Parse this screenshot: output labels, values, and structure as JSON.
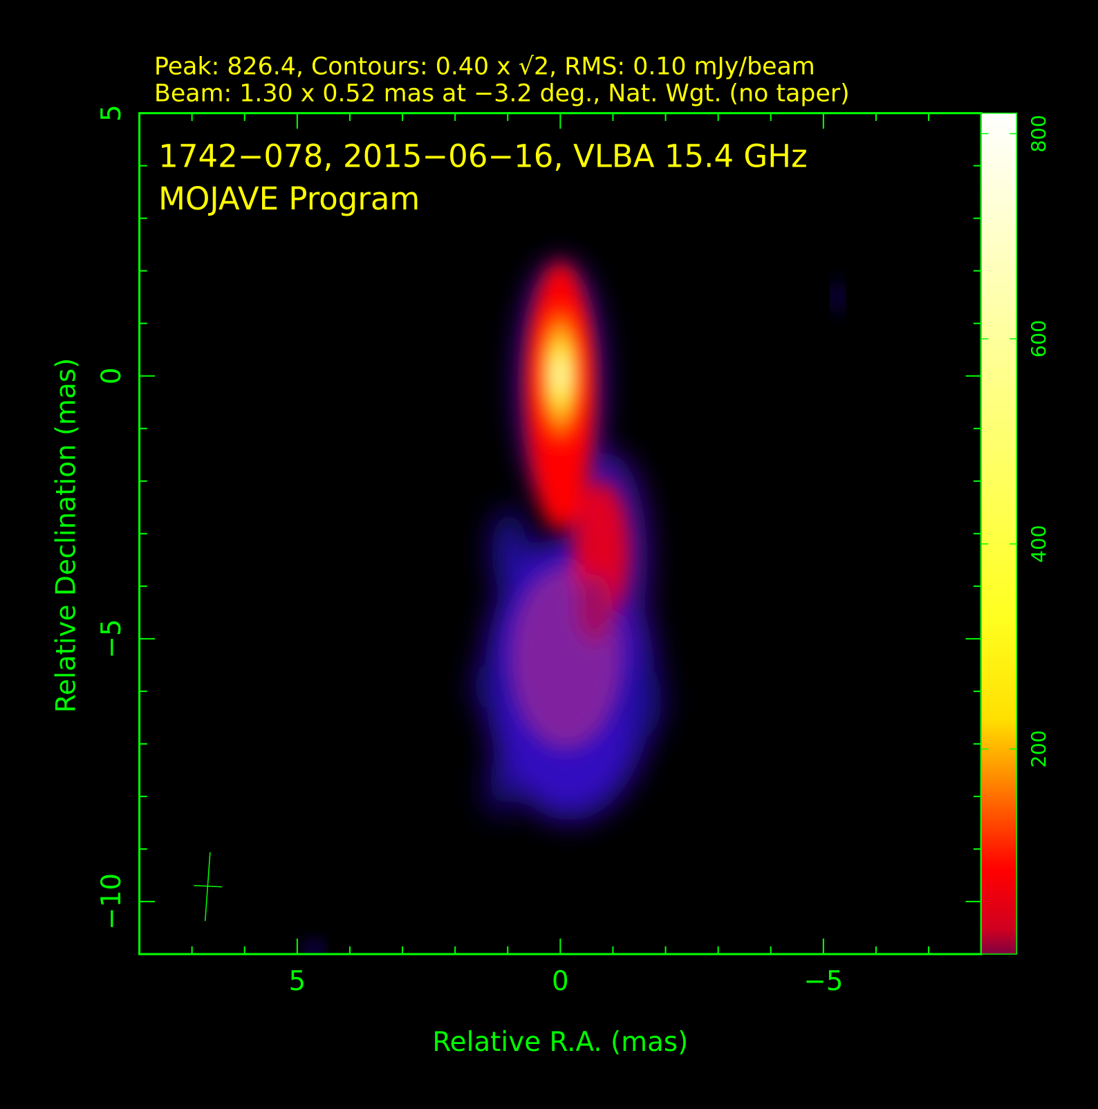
{
  "chart_data": {
    "type": "image",
    "header": [
      "Peak: 826.4, Contours: 0.40 x √2, RMS: 0.10 mJy/beam",
      "Beam: 1.30 x 0.52 mas at −3.2 deg., Nat. Wgt. (no taper)"
    ],
    "title": "1742−078, 2015−06−16, VLBA 15.4 GHz",
    "subtitle": "MOJAVE Program",
    "xlabel": "Relative R.A. (mas)",
    "ylabel": "Relative Declination (mas)",
    "xlim": [
      8,
      -8
    ],
    "xticks": [
      5,
      0,
      {
        "value": -5,
        "label": "−5"
      }
    ],
    "xminorticks": [
      7,
      6,
      4,
      3,
      2,
      1,
      -1,
      -2,
      -3,
      -4,
      -6,
      -7
    ],
    "ylim": [
      -11,
      5
    ],
    "yticks": [
      5,
      0,
      {
        "value": -5,
        "label": "−5"
      },
      {
        "value": -10,
        "label": "−10"
      }
    ],
    "yminorticks": [
      4,
      3,
      2,
      1,
      -1,
      -2,
      -3,
      -4,
      -6,
      -7,
      -8,
      -9
    ],
    "colorbar": {
      "lim": [
        0,
        820
      ],
      "ticks": [
        200,
        400,
        600,
        800
      ]
    },
    "axis_color": "#00ff00",
    "text_color": "#ffff00"
  }
}
